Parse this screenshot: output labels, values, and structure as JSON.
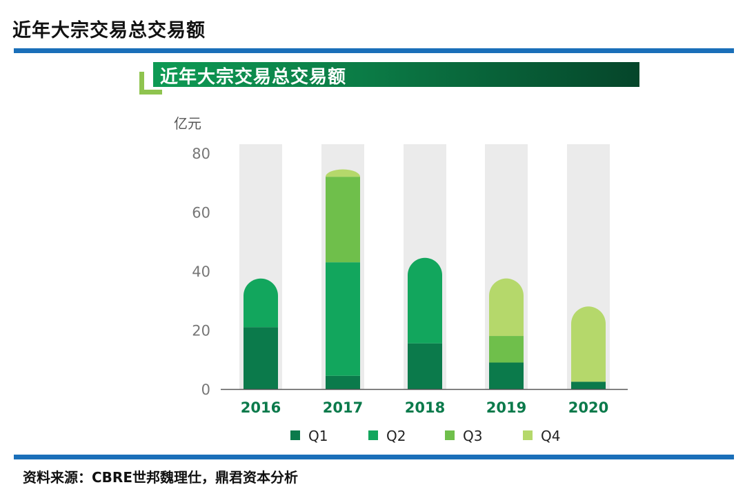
{
  "page": {
    "title": "近年大宗交易总交易额",
    "source": "资料来源：CBRE世邦魏理仕，鼎君资本分析"
  },
  "chart_data": {
    "type": "bar",
    "stacked": true,
    "title": "近年大宗交易总交易额",
    "unit_label": "亿元",
    "categories": [
      "2016",
      "2017",
      "2018",
      "2019",
      "2020"
    ],
    "ylim": [
      0,
      80
    ],
    "yticks": [
      0,
      20,
      40,
      60,
      80
    ],
    "series": [
      {
        "name": "Q1",
        "color": "#0b7a4b",
        "values": [
          21,
          4.5,
          15.5,
          9,
          2.5
        ]
      },
      {
        "name": "Q2",
        "color": "#12a65d",
        "values": [
          16.5,
          38.5,
          29,
          0,
          0
        ]
      },
      {
        "name": "Q3",
        "color": "#6fbf4b",
        "values": [
          0,
          29,
          0,
          9,
          0
        ]
      },
      {
        "name": "Q4",
        "color": "#b5d86b",
        "values": [
          0,
          2.5,
          0,
          19.5,
          25.5
        ]
      }
    ],
    "background_columns": true,
    "legend_position": "bottom",
    "grid": false
  }
}
